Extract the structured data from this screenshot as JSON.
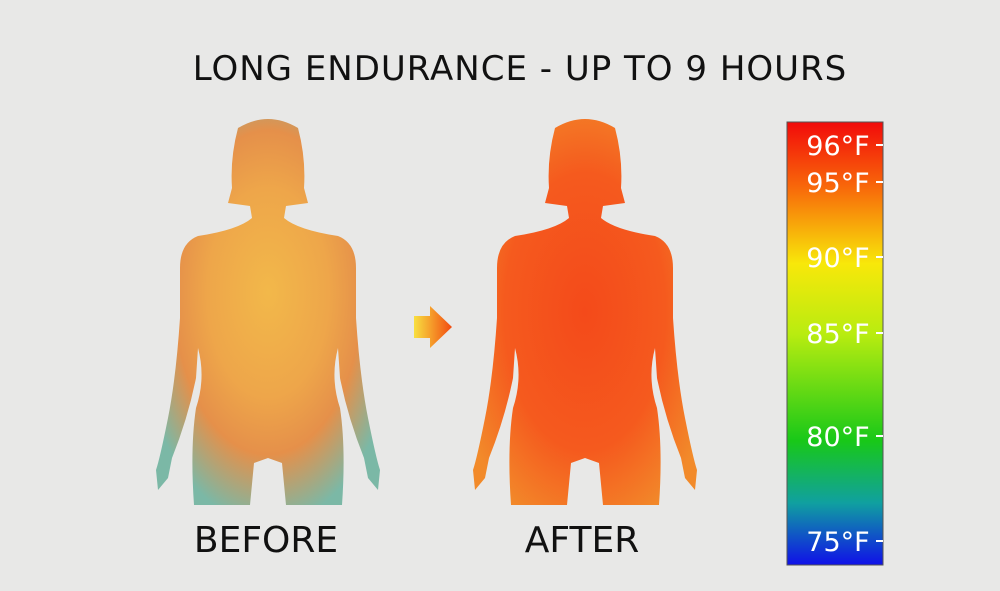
{
  "header": {
    "title": "LONG ENDURANCE - UP TO 9 HOURS"
  },
  "figures": [
    {
      "label": "BEFORE"
    },
    {
      "label": "AFTER"
    }
  ],
  "scale": {
    "labels": [
      "96°F",
      "95°F",
      "90°F",
      "85°F",
      "80°F",
      "75°F"
    ]
  }
}
